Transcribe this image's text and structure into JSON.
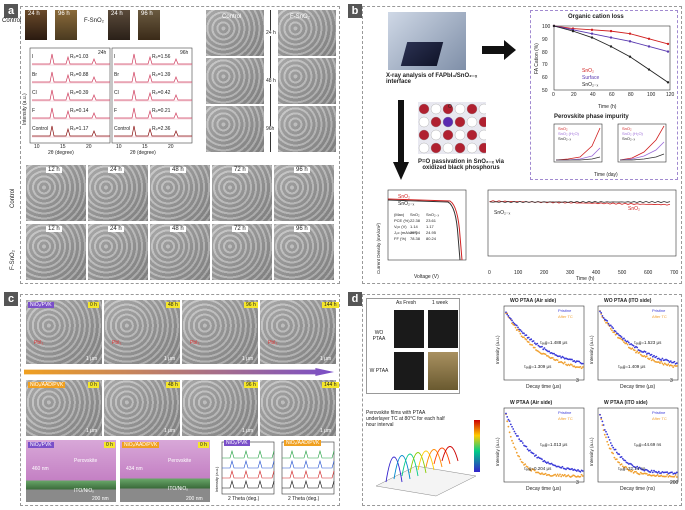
{
  "panel_labels": {
    "a": "a",
    "b": "b",
    "c": "c",
    "d": "d"
  },
  "panel_a": {
    "photo_labels": {
      "control": "Control",
      "fsno2": "F-SnO₂",
      "h24": "24 h",
      "h96": "96 h"
    },
    "xrd_left": {
      "corner": "24h",
      "rows": [
        {
          "name": "I",
          "rp": "Rₚ=1.03"
        },
        {
          "name": "Br",
          "rp": "Rₚ=0.88"
        },
        {
          "name": "Cl",
          "rp": "Rₚ=0.39"
        },
        {
          "name": "F",
          "rp": "Rₚ=0.14"
        },
        {
          "name": "Control",
          "rp": "Rₚ=1.17"
        }
      ],
      "xlabel": "2θ (degree)",
      "ylabel": "Intensity (a.u.)",
      "ticks": [
        "10",
        "15",
        "20"
      ]
    },
    "xrd_right": {
      "corner": "96h",
      "rows": [
        {
          "name": "I",
          "rp": "Rₚ=1.56"
        },
        {
          "name": "Br",
          "rp": "Rₚ=1.39"
        },
        {
          "name": "Cl",
          "rp": "Rₚ=0.42"
        },
        {
          "name": "F",
          "rp": "Rₚ=0.21"
        },
        {
          "name": "Control",
          "rp": "Rₚ=2.36"
        }
      ],
      "xlabel": "2θ (degree)",
      "ticks": [
        "10",
        "15",
        "20"
      ]
    },
    "sem_grid": {
      "control": "Control",
      "fsno2": "F-SnO₂",
      "h24": "24 h",
      "h48": "48 h",
      "h96": "96h"
    },
    "sem_strip": {
      "times": [
        "12 h",
        "24 h",
        "48 h",
        "72 h",
        "96 h"
      ],
      "control": "Control",
      "fsno2": "F-SnO₂"
    }
  },
  "panel_b": {
    "xray_caption": "X-ray analysis of FAPbI₃/SnO₂₋ₓ interface",
    "passivation_caption": "P=O passivation in SnO₂₋ₓ via oxidized black phosphorus",
    "atom_label": "O",
    "fa_chart": {
      "title": "Organic cation loss",
      "ylabel": "FA Cation (%)",
      "xlabel": "Time (h)",
      "legend": [
        "SnO₂",
        "Surface",
        "SnO₂₋ₓ"
      ],
      "xticks": [
        "0",
        "20",
        "40",
        "60",
        "80",
        "100",
        "120"
      ],
      "yticks": [
        "100",
        "90",
        "80",
        "70",
        "60",
        "50"
      ]
    },
    "impurity": {
      "title": "Perovskite phase impurity",
      "xlabel": "Time (day)",
      "legend_left": [
        "SnO₂",
        "SnO₂ (H₂O)",
        "SnO₂₋ₓ"
      ],
      "legend_right": [
        "SnO₂",
        "SnO₂ (H₂O)",
        "SnO₂₋ₓ"
      ]
    },
    "jv": {
      "xlabel": "Voltage (V)",
      "ylabel": "Current Density (mA/cm²)",
      "legend": [
        "SnO₂",
        "SnO₂₋ₓ"
      ],
      "table": [
        [
          "(Max)",
          "SnO₂",
          "SnO₂₋ₓ"
        ],
        [
          "PCE (%)",
          "22.38",
          "23.61"
        ],
        [
          "Vₒc (V)",
          "1.14",
          "1.17"
        ],
        [
          "Jₛc (mA/cm²)",
          "25.04",
          "24.95"
        ],
        [
          "FF (%)",
          "78.38",
          "80.24"
        ]
      ]
    },
    "stability": {
      "xlabel": "Time (h)",
      "xticks": [
        "0",
        "100",
        "200",
        "300",
        "400",
        "500",
        "600",
        "700"
      ],
      "label_a": "SnO₂₋ₓ",
      "label_b": "SnO₂"
    }
  },
  "panel_c": {
    "row1_tag": "NiOₓ/PVK",
    "row2_tag": "NiOₓ/AAD/PVK",
    "times": [
      "0 h",
      "48 h",
      "96 h",
      "144 h"
    ],
    "scale": "1 μm",
    "annotations": [
      "PbI₂",
      "PbI₂",
      "PbI₂",
      "PbI₂"
    ],
    "cross": [
      {
        "tag": "NiOₓ/PVK",
        "time": "0 h",
        "thickness": "460 nm",
        "layer": "Perovskite",
        "sub": "ITO/NiOₓ",
        "scale": "200 nm"
      },
      {
        "tag": "NiOₓ/AAD/PVK",
        "time": "0 h",
        "thickness": "434 nm",
        "layer": "Perovskite",
        "sub": "ITO/NiOₓ",
        "scale": "200 nm"
      }
    ],
    "xrd": [
      {
        "tag": "NiOₓ/PVK",
        "xlabel": "2 Theta (deg.)",
        "ylabel": "Intensity (a.u.)"
      },
      {
        "tag": "NiOₓ/AAD/PVK",
        "xlabel": "2 Theta (deg.)"
      }
    ]
  },
  "panel_d": {
    "photo_cols": [
      "As Fresh",
      "1 week"
    ],
    "photo_rows": [
      "WO PTAA",
      "W PTAA"
    ],
    "caption3d": "Perovskite films with PTAA underlayer TC at 80°C for each half hour interval",
    "plots": [
      {
        "title": "WO PTAA (Air side)",
        "tau1": "τₐᵥg=1.488 μs",
        "tau2": "τₐᵥg=1.309 μs",
        "xlabel": "Decay time (μs)",
        "ylabel": "Intensity (a.u.)",
        "legend": [
          "Pristine",
          "After TC"
        ],
        "xmax": "3"
      },
      {
        "title": "WO PTAA (ITO side)",
        "tau1": "τₐᵥg=1.523 μs",
        "tau2": "τₐᵥg=1.409 μs",
        "xlabel": "Decay time (μs)",
        "ylabel": "Intensity (a.u.)",
        "legend": [
          "Pristine",
          "After TC"
        ],
        "xmax": "3"
      },
      {
        "title": "W PTAA (Air side)",
        "tau1": "τₐᵥg=1.013 μs",
        "tau2": "τₐᵥg=0.204 μs",
        "xlabel": "Decay time (μs)",
        "ylabel": "Intensity (a.u.)",
        "legend": [
          "Pristine",
          "After TC"
        ],
        "xmax": "3"
      },
      {
        "title": "W PTAA (ITO side)",
        "tau1": "τₐᵥg=44.69 ns",
        "tau2": "τₐᵥg=32.14 ns",
        "xlabel": "Decay time (ns)",
        "ylabel": "Intensity (a.u.)",
        "legend": [
          "Pristine",
          "After TC"
        ],
        "xmax": "200"
      }
    ]
  },
  "colors": {
    "blue": "#3a3ad8",
    "orange": "#f0a030",
    "red": "#d02020",
    "purple": "#7a4fc9"
  }
}
